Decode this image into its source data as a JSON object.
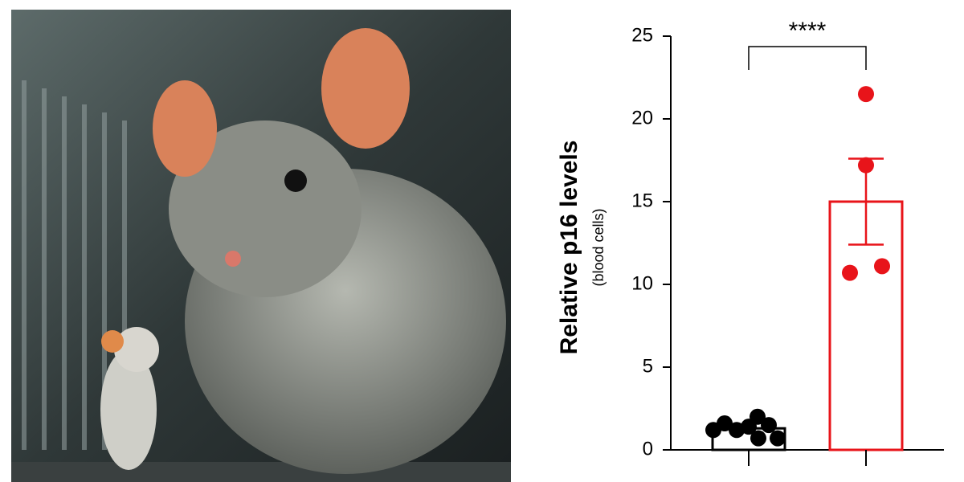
{
  "chart_data": {
    "type": "bar",
    "ylabel": "Relative p16 levels",
    "ylabel_sub": "(blood cells)",
    "annotation": "****",
    "categories": [
      null,
      null
    ],
    "values": [
      1.3,
      15
    ],
    "errors": [
      null,
      2.6
    ],
    "colors": [
      "#000000",
      "#e8141a"
    ],
    "points": [
      [
        1.2,
        1.6,
        1.2,
        1.4,
        2.0,
        0.7,
        1.5,
        0.7
      ],
      [
        21.5,
        17.2,
        10.7,
        11.1
      ]
    ],
    "ylim": [
      0,
      25
    ],
    "yticks": [
      0,
      5,
      10,
      15,
      20,
      25
    ]
  }
}
